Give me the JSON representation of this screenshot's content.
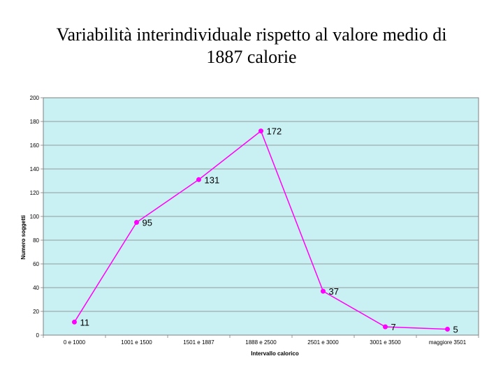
{
  "slide": {
    "title_line1": "Variabilità interindividuale rispetto al valore medio di",
    "title_line2": "1887 calorie"
  },
  "colors": {
    "plot_background": "#c9f0f3",
    "series_color": "#ff00ff",
    "gridline": "#808080",
    "axis": "#808080"
  },
  "chart_data": {
    "type": "line",
    "title": "Variabilità interindividuale rispetto al valore medio di 1887 calorie",
    "xlabel": "Intervallo calorico",
    "ylabel": "Numero soggetti",
    "categories": [
      "0 e 1000",
      "1001 e 1500",
      "1501 e 1887",
      "1888 e 2500",
      "2501 e 3000",
      "3001 e 3500",
      "maggiore 3501"
    ],
    "series": [
      {
        "values": [
          11,
          95,
          131,
          172,
          37,
          7,
          5
        ]
      }
    ],
    "ylim": [
      0,
      200
    ],
    "yticks": [
      0,
      20,
      40,
      60,
      80,
      100,
      120,
      140,
      160,
      180,
      200
    ],
    "grid": true,
    "legend": "none",
    "data_labels": true
  }
}
